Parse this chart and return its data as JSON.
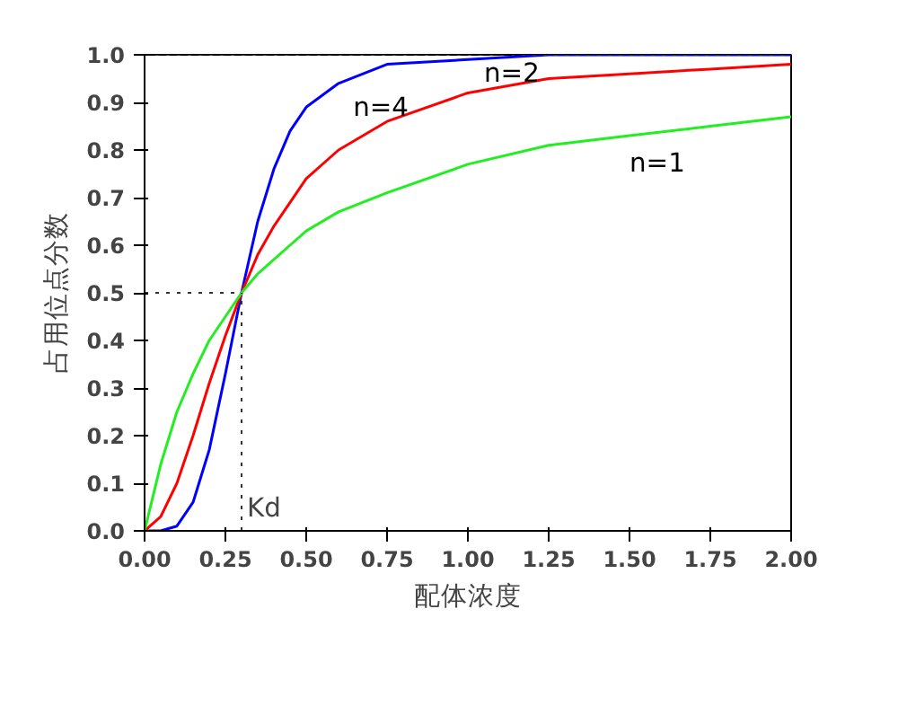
{
  "chart_data": {
    "type": "line",
    "xlabel": "配体浓度",
    "ylabel": "占用位点分数",
    "x": [
      0,
      0.05,
      0.1,
      0.15,
      0.2,
      0.25,
      0.3,
      0.35,
      0.4,
      0.45,
      0.5,
      0.6,
      0.75,
      1.0,
      1.25,
      1.5,
      1.75,
      2.0
    ],
    "series": [
      {
        "name": "n=4",
        "color": "#0000ff",
        "values": [
          0,
          0.0,
          0.01,
          0.06,
          0.17,
          0.33,
          0.5,
          0.65,
          0.76,
          0.84,
          0.89,
          0.94,
          0.98,
          0.99,
          1.0,
          1.0,
          1.0,
          1.0
        ]
      },
      {
        "name": "n=2",
        "color": "#ff0000",
        "values": [
          0,
          0.03,
          0.1,
          0.2,
          0.31,
          0.41,
          0.5,
          0.58,
          0.64,
          0.69,
          0.74,
          0.8,
          0.86,
          0.92,
          0.95,
          0.96,
          0.97,
          0.98
        ]
      },
      {
        "name": "n=1",
        "color": "#22ee22",
        "values": [
          0,
          0.14,
          0.25,
          0.33,
          0.4,
          0.45,
          0.5,
          0.54,
          0.57,
          0.6,
          0.63,
          0.67,
          0.71,
          0.77,
          0.81,
          0.83,
          0.85,
          0.87
        ]
      }
    ],
    "xlim": [
      0,
      2.0
    ],
    "ylim": [
      0,
      1.0
    ],
    "xticks": [
      {
        "value": 0,
        "label": "0.00"
      },
      {
        "value": 0.25,
        "label": "0.25"
      },
      {
        "value": 0.5,
        "label": "0.50"
      },
      {
        "value": 0.75,
        "label": "0.75"
      },
      {
        "value": 1.0,
        "label": "1.00"
      },
      {
        "value": 1.25,
        "label": "1.25"
      },
      {
        "value": 1.5,
        "label": "1.50"
      },
      {
        "value": 1.75,
        "label": "1.75"
      },
      {
        "value": 2.0,
        "label": "2.00"
      }
    ],
    "yticks": [
      {
        "value": 0,
        "label": "0.0"
      },
      {
        "value": 0.1,
        "label": "0.1"
      },
      {
        "value": 0.2,
        "label": "0.2"
      },
      {
        "value": 0.3,
        "label": "0.3"
      },
      {
        "value": 0.4,
        "label": "0.4"
      },
      {
        "value": 0.5,
        "label": "0.5"
      },
      {
        "value": 0.6,
        "label": "0.6"
      },
      {
        "value": 0.7,
        "label": "0.7"
      },
      {
        "value": 0.8,
        "label": "0.8"
      },
      {
        "value": 0.9,
        "label": "0.9"
      },
      {
        "value": 1.0,
        "label": "1.0"
      }
    ],
    "ref_lines": [
      {
        "axis": "x",
        "value": 0.3,
        "label": "Kd",
        "line_style": "dotted"
      },
      {
        "axis": "y",
        "value": 0.5,
        "line_style": "dotted"
      },
      {
        "axis": "y",
        "value": 1.0,
        "line_style": "dotted"
      }
    ],
    "grid": false,
    "marker": "none",
    "line_style": "solid"
  }
}
